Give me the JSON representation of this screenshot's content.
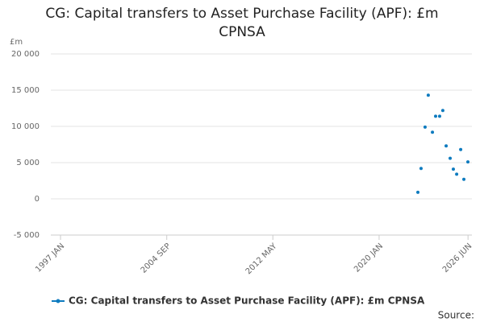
{
  "chart_data": {
    "type": "scatter",
    "title": "CG: Capital transfers to Asset Purchase Facility (APF): £m CPNSA",
    "y_label": "£m",
    "source": "Source:",
    "series": [
      {
        "name": "CG: Capital transfers to Asset Purchase Facility (APF): £m CPNSA",
        "color": "#0e7bbf",
        "x": [
          2022.8,
          2023.03,
          2023.32,
          2023.55,
          2023.85,
          2024.08,
          2024.37,
          2024.6,
          2024.84,
          2025.13,
          2025.36,
          2025.6,
          2025.89,
          2026.12,
          2026.41
        ],
        "values": [
          900,
          4200,
          9900,
          14300,
          9200,
          11400,
          11400,
          12200,
          7300,
          5600,
          4100,
          3400,
          6800,
          2700,
          5100
        ]
      }
    ],
    "xlim": [
      1996.3,
      2026.7
    ],
    "xticks": [
      {
        "value": 1997.0,
        "label": "1997 JAN"
      },
      {
        "value": 2004.67,
        "label": "2004 SEP"
      },
      {
        "value": 2012.33,
        "label": "2012 MAY"
      },
      {
        "value": 2020.0,
        "label": "2020 JAN"
      },
      {
        "value": 2026.42,
        "label": "2026 JUN"
      }
    ],
    "ylim": [
      -5000,
      20000
    ],
    "yticks": [
      {
        "value": -5000,
        "label": "-5 000"
      },
      0,
      {
        "value": 5000,
        "label": "5 000"
      },
      {
        "value": 10000,
        "label": "10 000"
      },
      {
        "value": 15000,
        "label": "15 000"
      },
      {
        "value": 20000,
        "label": "20 000"
      }
    ],
    "grid": true,
    "legend": "bottom"
  }
}
